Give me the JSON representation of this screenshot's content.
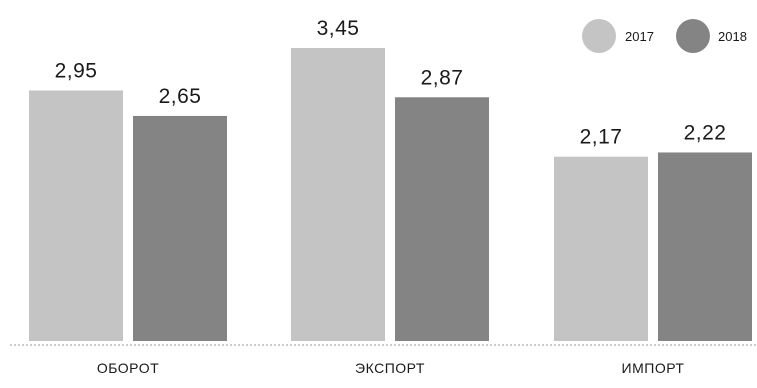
{
  "chart_data": {
    "type": "bar",
    "categories": [
      "ОБОРОТ",
      "ЭКСПОРТ",
      "ИМПОРТ"
    ],
    "series": [
      {
        "name": "2017",
        "values": [
          2.95,
          3.45,
          2.17
        ],
        "labels": [
          "2,95",
          "3,45",
          "2,17"
        ],
        "color": "#c4c4c4"
      },
      {
        "name": "2018",
        "values": [
          2.65,
          2.87,
          2.22
        ],
        "labels": [
          "2,65",
          "2,87",
          "2,22"
        ],
        "color": "#848484"
      }
    ],
    "title": "",
    "xlabel": "",
    "ylabel": "",
    "ylim": [
      0,
      3.6
    ],
    "grid": false,
    "legend": "top-right",
    "baseline_color": "#9a9a9a"
  }
}
